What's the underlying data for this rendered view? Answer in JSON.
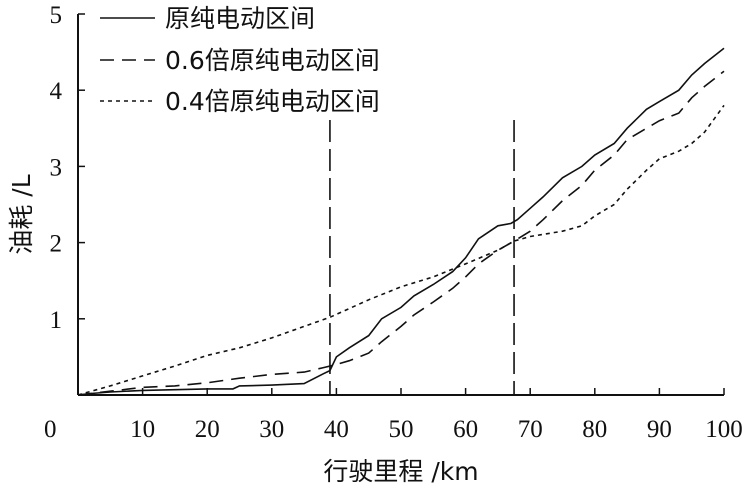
{
  "chart_data": {
    "type": "line",
    "xlabel": "行驶里程 /km",
    "ylabel": "油耗 /L",
    "xlim": [
      0,
      100
    ],
    "ylim": [
      0,
      5
    ],
    "xticks": [
      "0",
      "10",
      "20",
      "30",
      "40",
      "50",
      "60",
      "70",
      "80",
      "90",
      "100"
    ],
    "yticks": [
      "1",
      "2",
      "3",
      "4",
      "5"
    ],
    "legend_position": "top-left",
    "vertical_markers": [
      39,
      67.5
    ],
    "series": [
      {
        "name": "原纯电动区间",
        "style": "solid",
        "x": [
          0,
          2,
          5,
          10,
          15,
          20,
          24,
          25,
          30,
          35,
          38,
          39,
          40,
          42,
          45,
          47,
          50,
          52,
          55,
          58,
          60,
          62,
          65,
          67,
          68,
          70,
          72,
          75,
          78,
          80,
          83,
          85,
          88,
          90,
          93,
          95,
          97,
          100
        ],
        "y": [
          0,
          0.02,
          0.04,
          0.06,
          0.07,
          0.08,
          0.08,
          0.12,
          0.13,
          0.15,
          0.28,
          0.32,
          0.5,
          0.62,
          0.78,
          1.0,
          1.15,
          1.3,
          1.45,
          1.62,
          1.8,
          2.05,
          2.22,
          2.25,
          2.3,
          2.45,
          2.6,
          2.85,
          3.0,
          3.15,
          3.3,
          3.5,
          3.75,
          3.85,
          4.0,
          4.2,
          4.35,
          4.55
        ]
      },
      {
        "name": "0.6倍原纯电动区间",
        "style": "dashed",
        "x": [
          0,
          5,
          10,
          15,
          20,
          25,
          30,
          35,
          38,
          40,
          42,
          45,
          47,
          50,
          52,
          55,
          58,
          60,
          62,
          65,
          67.5,
          70,
          72,
          75,
          78,
          80,
          83,
          85,
          88,
          90,
          93,
          95,
          97,
          100
        ],
        "y": [
          0,
          0.05,
          0.1,
          0.12,
          0.16,
          0.22,
          0.27,
          0.3,
          0.36,
          0.4,
          0.45,
          0.55,
          0.7,
          0.9,
          1.05,
          1.22,
          1.4,
          1.55,
          1.72,
          1.9,
          2.02,
          2.15,
          2.3,
          2.55,
          2.75,
          2.95,
          3.15,
          3.35,
          3.5,
          3.6,
          3.7,
          3.9,
          4.05,
          4.25
        ]
      },
      {
        "name": "0.4倍原纯电动区间",
        "style": "dotted",
        "x": [
          0,
          5,
          10,
          15,
          20,
          25,
          30,
          35,
          39,
          45,
          50,
          55,
          60,
          65,
          67.5,
          70,
          75,
          78,
          80,
          83,
          85,
          88,
          90,
          93,
          95,
          97,
          100
        ],
        "y": [
          0,
          0.12,
          0.25,
          0.38,
          0.52,
          0.62,
          0.75,
          0.9,
          1.02,
          1.25,
          1.42,
          1.55,
          1.72,
          1.9,
          2.02,
          2.08,
          2.15,
          2.22,
          2.35,
          2.5,
          2.7,
          2.95,
          3.1,
          3.2,
          3.3,
          3.45,
          3.8
        ]
      }
    ]
  }
}
